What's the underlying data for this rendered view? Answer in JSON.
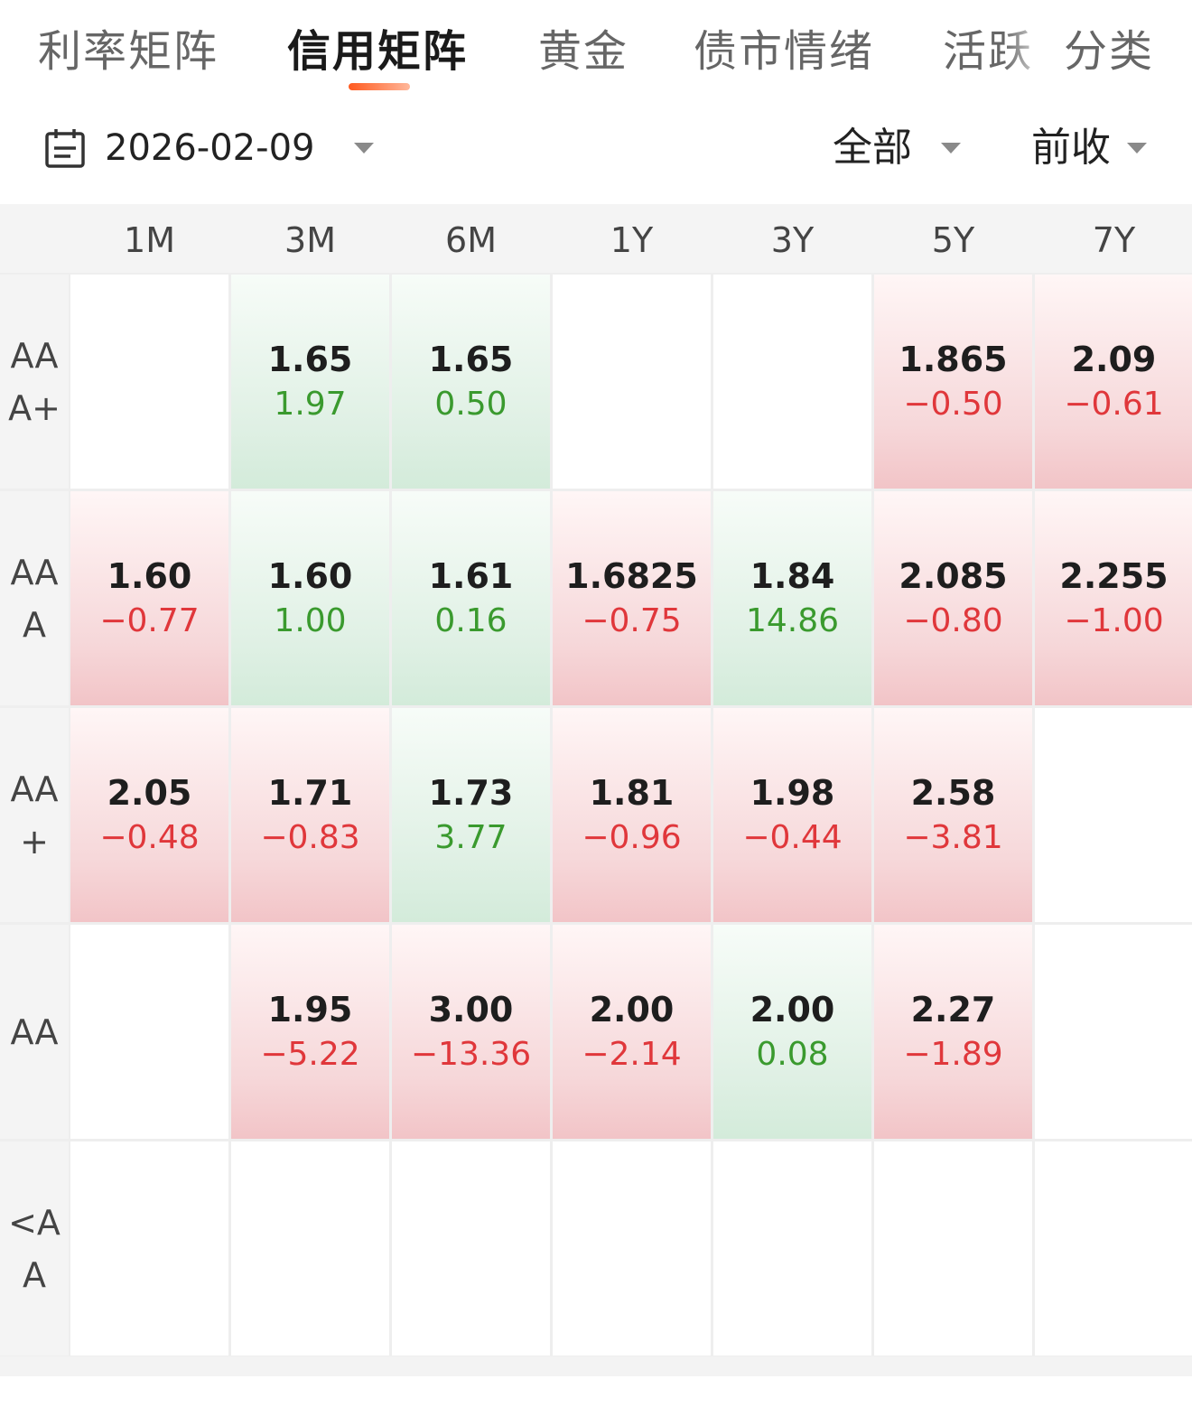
{
  "tabs": [
    {
      "label": "利率矩阵",
      "active": false
    },
    {
      "label": "信用矩阵",
      "active": true
    },
    {
      "label": "黄金",
      "active": false
    },
    {
      "label": "债市情绪",
      "active": false
    },
    {
      "label": "活跃",
      "active": false
    },
    {
      "label": "分类",
      "active": false
    }
  ],
  "filter": {
    "date": "2026-02-09",
    "scope": "全部",
    "compare": "前收"
  },
  "colors": {
    "accent": "#ff5a1f",
    "up_text": "#e0373b",
    "down_text": "#3a9a2e",
    "up_bg": "#f6d7d9",
    "down_bg": "#dff0e4"
  },
  "matrix": {
    "columns": [
      "1M",
      "3M",
      "6M",
      "1Y",
      "3Y",
      "5Y",
      "7Y"
    ],
    "rows": [
      {
        "label": "AAA+",
        "cells": [
          null,
          {
            "value": "1.65",
            "change": "1.97",
            "dir": "down"
          },
          {
            "value": "1.65",
            "change": "0.50",
            "dir": "down"
          },
          null,
          null,
          {
            "value": "1.865",
            "change": "−0.50",
            "dir": "up"
          },
          {
            "value": "2.09",
            "change": "−0.61",
            "dir": "up"
          }
        ]
      },
      {
        "label": "AAA",
        "cells": [
          {
            "value": "1.60",
            "change": "−0.77",
            "dir": "up"
          },
          {
            "value": "1.60",
            "change": "1.00",
            "dir": "down"
          },
          {
            "value": "1.61",
            "change": "0.16",
            "dir": "down"
          },
          {
            "value": "1.6825",
            "change": "−0.75",
            "dir": "up"
          },
          {
            "value": "1.84",
            "change": "14.86",
            "dir": "down"
          },
          {
            "value": "2.085",
            "change": "−0.80",
            "dir": "up"
          },
          {
            "value": "2.255",
            "change": "−1.00",
            "dir": "up"
          }
        ]
      },
      {
        "label": "AA+",
        "cells": [
          {
            "value": "2.05",
            "change": "−0.48",
            "dir": "up"
          },
          {
            "value": "1.71",
            "change": "−0.83",
            "dir": "up"
          },
          {
            "value": "1.73",
            "change": "3.77",
            "dir": "down"
          },
          {
            "value": "1.81",
            "change": "−0.96",
            "dir": "up"
          },
          {
            "value": "1.98",
            "change": "−0.44",
            "dir": "up"
          },
          {
            "value": "2.58",
            "change": "−3.81",
            "dir": "up"
          },
          null
        ]
      },
      {
        "label": "AA",
        "cells": [
          null,
          {
            "value": "1.95",
            "change": "−5.22",
            "dir": "up"
          },
          {
            "value": "3.00",
            "change": "−13.36",
            "dir": "up"
          },
          {
            "value": "2.00",
            "change": "−2.14",
            "dir": "up"
          },
          {
            "value": "2.00",
            "change": "0.08",
            "dir": "down"
          },
          {
            "value": "2.27",
            "change": "−1.89",
            "dir": "up"
          },
          null
        ]
      },
      {
        "label": "<AA",
        "cells": [
          null,
          null,
          null,
          null,
          null,
          null,
          null
        ]
      }
    ]
  }
}
